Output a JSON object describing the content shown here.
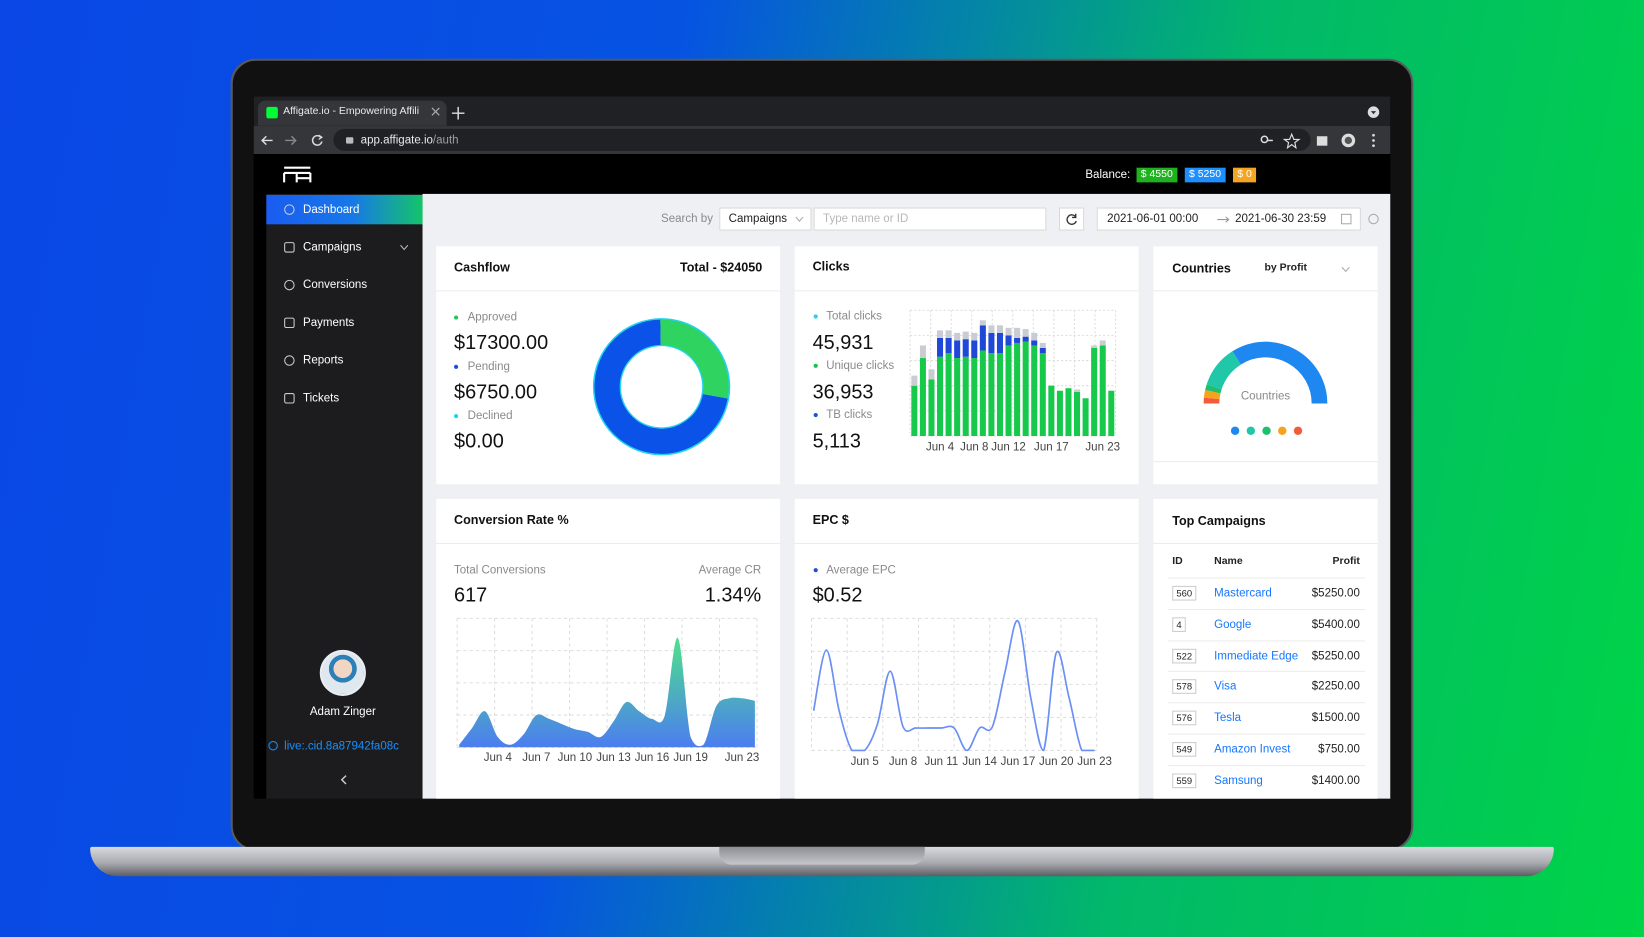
{
  "browser": {
    "tab_title": "Affigate.io - Empowering Affili",
    "url_host": "app.affigate.io",
    "url_path": "/auth"
  },
  "header": {
    "balance_label": "Balance:",
    "balances": [
      {
        "label": "$ 4550",
        "color": "#1fb11f"
      },
      {
        "label": "$ 5250",
        "color": "#1e8fff"
      },
      {
        "label": "$ 0",
        "color": "#f5a524"
      }
    ]
  },
  "sidebar": {
    "menu": [
      "Dashboard",
      "Campaigns",
      "Conversions",
      "Payments",
      "Reports",
      "Tickets"
    ],
    "user_name": "Adam Zinger",
    "account_id": "live:.cid.8a87942fa08c"
  },
  "toolbar": {
    "search_label": "Search by",
    "search_field": "Campaigns",
    "search_placeholder": "Type name or ID",
    "date_from": "2021-06-01 00:00",
    "date_to": "2021-06-30 23:59"
  },
  "cashflow": {
    "title": "Cashflow",
    "total": "Total - $24050",
    "items": [
      {
        "name": "Approved",
        "value": 17300,
        "value_label": "$17300.00",
        "color": "#0a52e8",
        "dot": "#22c55e"
      },
      {
        "name": "Pending",
        "value": 6750,
        "value_label": "$6750.00",
        "color": "#2fd35f",
        "dot": "#1d4ed8"
      },
      {
        "name": "Declined",
        "value": 0,
        "value_label": "$0.00",
        "color": "#22d3ee",
        "dot": "#22d3ee"
      }
    ]
  },
  "clicks": {
    "title": "Clicks",
    "stats": [
      {
        "name": "Total clicks",
        "value": "45,931",
        "color": "#22d3ee"
      },
      {
        "name": "Unique clicks",
        "value": "36,953",
        "color": "#16c24a"
      },
      {
        "name": "TB clicks",
        "value": "5,113",
        "color": "#1d4ed8"
      }
    ],
    "categories": [
      null,
      null,
      null,
      "Jun 4",
      null,
      null,
      null,
      "Jun 8",
      null,
      null,
      null,
      "Jun 12",
      null,
      null,
      null,
      null,
      "Jun 17",
      null,
      null,
      null,
      null,
      null,
      "Jun 23",
      null
    ],
    "ylim": [
      0,
      100
    ],
    "series": [
      {
        "color": "#17c94a",
        "values": [
          40,
          62,
          45,
          63,
          66,
          62,
          63,
          62,
          68,
          66,
          66,
          72,
          74,
          75,
          72,
          66,
          40,
          36,
          38,
          35,
          30,
          70,
          72,
          36
        ]
      },
      {
        "color": "#1f48d8",
        "values": [
          0,
          0,
          0,
          15,
          12,
          14,
          14,
          14,
          20,
          16,
          16,
          8,
          4,
          4,
          4,
          4,
          0,
          0,
          0,
          0,
          0,
          0,
          0,
          0
        ]
      },
      {
        "color": "#c9ccd2",
        "values": [
          8,
          10,
          8,
          6,
          6,
          6,
          6,
          6,
          4,
          6,
          6,
          6,
          8,
          6,
          6,
          4,
          0,
          0,
          0,
          2,
          0,
          2,
          4,
          0
        ]
      }
    ]
  },
  "conversion_rate": {
    "title": "Conversion Rate %",
    "total_label": "Total Conversions",
    "total_value": "617",
    "avg_label": "Average CR",
    "avg_value": "1.34%",
    "categories": [
      null,
      null,
      null,
      "Jun 4",
      null,
      null,
      "Jun 7",
      null,
      null,
      "Jun 10",
      null,
      null,
      "Jun 13",
      null,
      null,
      "Jun 16",
      null,
      null,
      "Jun 19",
      null,
      null,
      null,
      "Jun 23",
      null
    ],
    "values": [
      2,
      15,
      28,
      8,
      2,
      10,
      25,
      22,
      18,
      14,
      12,
      8,
      20,
      35,
      28,
      22,
      25,
      85,
      8,
      2,
      32,
      38,
      38,
      36
    ],
    "ylim": [
      0,
      100
    ],
    "color": "#4c7df0"
  },
  "epc": {
    "title": "EPC $",
    "avg_label": "Average EPC",
    "avg_value": "$0.52",
    "dot_color": "#1d4ed8",
    "categories": [
      null,
      null,
      null,
      null,
      "Jun 5",
      null,
      null,
      "Jun 8",
      null,
      null,
      "Jun 11",
      null,
      null,
      "Jun 14",
      null,
      null,
      "Jun 17",
      null,
      null,
      "Jun 20",
      null,
      null,
      "Jun 23"
    ],
    "values": [
      30,
      76,
      30,
      0,
      0,
      20,
      60,
      18,
      17,
      17,
      17,
      17,
      0,
      17,
      18,
      60,
      98,
      40,
      0,
      74,
      40,
      0,
      0
    ],
    "ylim": [
      0,
      100
    ],
    "color": "#6b8ff5"
  },
  "countries": {
    "title": "Countries",
    "sort": "by Profit",
    "center_label": "Countries",
    "segments": [
      {
        "value": 68,
        "color": "#1e88f0"
      },
      {
        "value": 22,
        "color": "#20c7a8"
      },
      {
        "value": 3,
        "color": "#1fbf70"
      },
      {
        "value": 4,
        "color": "#f7a21b"
      },
      {
        "value": 3,
        "color": "#f25c3b"
      }
    ]
  },
  "top_campaigns": {
    "title": "Top Campaigns",
    "columns": [
      "ID",
      "Name",
      "Profit"
    ],
    "rows": [
      [
        "560",
        "Mastercard",
        "$5250.00"
      ],
      [
        "4",
        "Google",
        "$5400.00"
      ],
      [
        "522",
        "Immediate Edge",
        "$5250.00"
      ],
      [
        "578",
        "Visa",
        "$2250.00"
      ],
      [
        "576",
        "Tesla",
        "$1500.00"
      ],
      [
        "549",
        "Amazon Invest",
        "$750.00"
      ],
      [
        "559",
        "Samsung",
        "$1400.00"
      ]
    ]
  }
}
